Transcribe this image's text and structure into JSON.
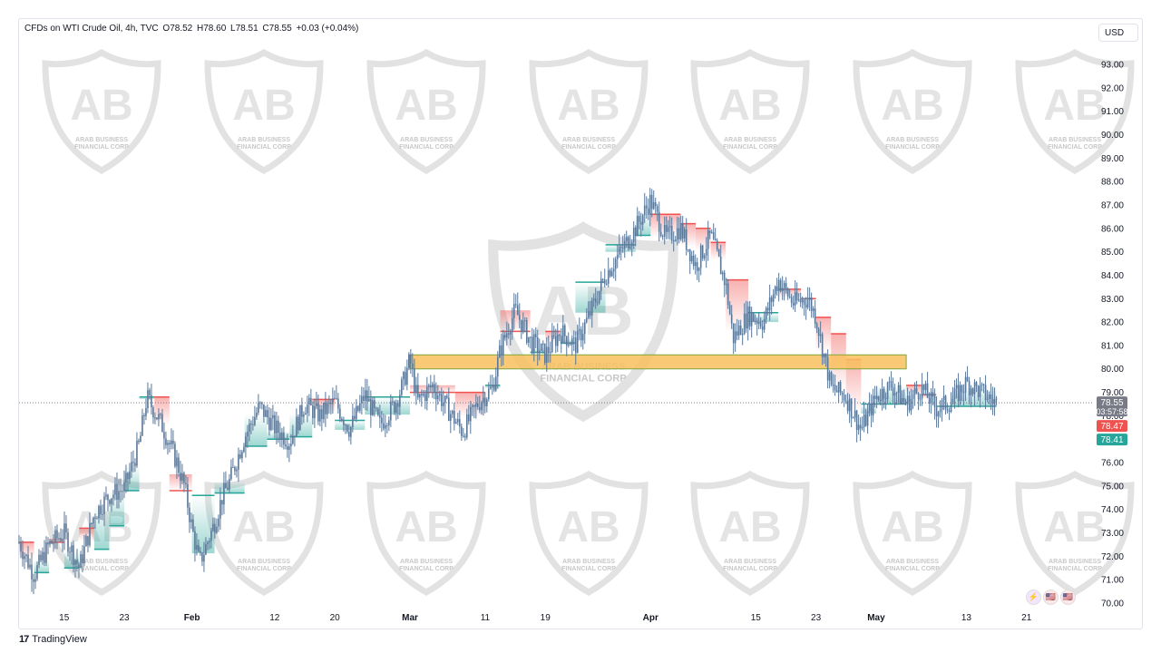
{
  "header": {
    "symbol": "CFDs on WTI Crude Oil, 4h, TVC",
    "open": "O78.52",
    "high": "H78.60",
    "low": "L78.51",
    "close": "C78.55",
    "change": "+0.03 (+0.04%)",
    "currency_button": "USD"
  },
  "footer": {
    "brand": "TradingView"
  },
  "badges": [
    "⚡",
    "🇺🇸",
    "🇺🇸"
  ],
  "watermark_text": [
    "ARAB BUSINESS",
    "FINANCIAL CORP"
  ],
  "colors": {
    "up": "#26a69a",
    "down": "#ef5350",
    "candle": "#5b7796",
    "zone_fill": "#f9bf5e",
    "zone_border": "#7ea63a",
    "last_price_tag": "#787b86"
  },
  "price_tags": {
    "last": "78.55",
    "countdown": "03:57:58",
    "red_level": "78.47",
    "green_level": "78.41"
  },
  "chart_data": {
    "type": "candlestick",
    "title": "CFDs on WTI Crude Oil, 4h, TVC",
    "ylim": [
      70,
      93
    ],
    "y_ticks": [
      "93.00",
      "92.00",
      "91.00",
      "90.00",
      "89.00",
      "88.00",
      "87.00",
      "86.00",
      "85.00",
      "84.00",
      "83.00",
      "82.00",
      "81.00",
      "80.00",
      "79.00",
      "78.00",
      "77.00",
      "76.00",
      "75.00",
      "74.00",
      "73.00",
      "72.00",
      "71.00",
      "70.00"
    ],
    "x_ticks": [
      {
        "label": "15",
        "bold": false
      },
      {
        "label": "23",
        "bold": false
      },
      {
        "label": "Feb",
        "bold": true
      },
      {
        "label": "12",
        "bold": false
      },
      {
        "label": "20",
        "bold": false
      },
      {
        "label": "Mar",
        "bold": true
      },
      {
        "label": "11",
        "bold": false
      },
      {
        "label": "19",
        "bold": false
      },
      {
        "label": "Apr",
        "bold": true
      },
      {
        "label": "15",
        "bold": false
      },
      {
        "label": "23",
        "bold": false
      },
      {
        "label": "May",
        "bold": true
      },
      {
        "label": "13",
        "bold": false
      },
      {
        "label": "21",
        "bold": false
      }
    ],
    "x_tick_days": [
      4,
      12,
      21,
      32,
      40,
      50,
      60,
      68,
      82,
      96,
      104,
      112,
      124,
      132
    ],
    "days_span": [
      -2,
      133
    ],
    "price_path": [
      [
        -2,
        72.6
      ],
      [
        0,
        71.2
      ],
      [
        2,
        72.5
      ],
      [
        4,
        73.0
      ],
      [
        6,
        71.5
      ],
      [
        8,
        73.8
      ],
      [
        10,
        74.6
      ],
      [
        12,
        74.9
      ],
      [
        14,
        76.8
      ],
      [
        15,
        78.8
      ],
      [
        17,
        77.6
      ],
      [
        19,
        76.0
      ],
      [
        20,
        75.0
      ],
      [
        21,
        73.2
      ],
      [
        22,
        71.7
      ],
      [
        24,
        73.4
      ],
      [
        25,
        74.5
      ],
      [
        26,
        75.2
      ],
      [
        28,
        77.1
      ],
      [
        30,
        78.4
      ],
      [
        32,
        77.5
      ],
      [
        34,
        76.9
      ],
      [
        36,
        78.5
      ],
      [
        38,
        78.0
      ],
      [
        40,
        78.6
      ],
      [
        42,
        77.4
      ],
      [
        44,
        78.9
      ],
      [
        46,
        77.6
      ],
      [
        48,
        78.5
      ],
      [
        49,
        79.3
      ],
      [
        50,
        80.4
      ],
      [
        51,
        78.6
      ],
      [
        53,
        79.3
      ],
      [
        55,
        78.3
      ],
      [
        57,
        77.3
      ],
      [
        59,
        78.5
      ],
      [
        61,
        79.2
      ],
      [
        62,
        80.8
      ],
      [
        63,
        81.7
      ],
      [
        64,
        82.5
      ],
      [
        66,
        81.2
      ],
      [
        68,
        80.6
      ],
      [
        70,
        81.6
      ],
      [
        72,
        81.0
      ],
      [
        74,
        82.4
      ],
      [
        76,
        84.0
      ],
      [
        78,
        85.0
      ],
      [
        80,
        86.0
      ],
      [
        82,
        87.2
      ],
      [
        84,
        85.6
      ],
      [
        86,
        86.0
      ],
      [
        88,
        84.4
      ],
      [
        90,
        85.7
      ],
      [
        92,
        83.6
      ],
      [
        93,
        81.3
      ],
      [
        95,
        82.3
      ],
      [
        97,
        82.0
      ],
      [
        99,
        83.8
      ],
      [
        101,
        82.8
      ],
      [
        103,
        83.0
      ],
      [
        104,
        82.2
      ],
      [
        106,
        79.2
      ],
      [
        108,
        78.8
      ],
      [
        110,
        77.4
      ],
      [
        112,
        78.8
      ],
      [
        114,
        79.3
      ],
      [
        116,
        78.5
      ],
      [
        118,
        79.2
      ],
      [
        120,
        78.3
      ],
      [
        122,
        78.6
      ],
      [
        124,
        79.4
      ],
      [
        126,
        79.0
      ],
      [
        128,
        78.55
      ]
    ],
    "supertrend": [
      {
        "from": -2,
        "to": 0,
        "value": 72.6,
        "side": "down"
      },
      {
        "from": 0,
        "to": 2,
        "value": 71.3,
        "side": "up"
      },
      {
        "from": 2,
        "to": 4,
        "value": 72.6,
        "side": "down"
      },
      {
        "from": 4,
        "to": 6,
        "value": 71.5,
        "side": "up"
      },
      {
        "from": 6,
        "to": 8,
        "value": 73.2,
        "side": "down"
      },
      {
        "from": 8,
        "to": 10,
        "value": 72.3,
        "side": "up"
      },
      {
        "from": 10,
        "to": 12,
        "value": 73.3,
        "side": "up"
      },
      {
        "from": 12,
        "to": 14,
        "value": 74.8,
        "side": "up"
      },
      {
        "from": 14,
        "to": 16,
        "value": 78.8,
        "side": "up"
      },
      {
        "from": 16,
        "to": 18,
        "value": 78.8,
        "side": "down"
      },
      {
        "from": 18,
        "to": 21,
        "value": 74.8,
        "side": "down"
      },
      {
        "from": 21,
        "to": 24,
        "value": 74.6,
        "side": "up"
      },
      {
        "from": 24,
        "to": 28,
        "value": 74.7,
        "side": "up"
      },
      {
        "from": 28,
        "to": 31,
        "value": 76.7,
        "side": "up"
      },
      {
        "from": 31,
        "to": 34,
        "value": 77.0,
        "side": "up"
      },
      {
        "from": 34,
        "to": 37,
        "value": 77.1,
        "side": "up"
      },
      {
        "from": 37,
        "to": 40,
        "value": 78.7,
        "side": "down"
      },
      {
        "from": 40,
        "to": 44,
        "value": 77.8,
        "side": "up"
      },
      {
        "from": 44,
        "to": 50,
        "value": 78.8,
        "side": "up"
      },
      {
        "from": 50,
        "to": 56,
        "value": 79.0,
        "side": "down"
      },
      {
        "from": 56,
        "to": 60,
        "value": 79.0,
        "side": "down"
      },
      {
        "from": 60,
        "to": 62,
        "value": 79.3,
        "side": "up"
      },
      {
        "from": 62,
        "to": 66,
        "value": 81.6,
        "side": "down"
      },
      {
        "from": 66,
        "to": 68,
        "value": 80.7,
        "side": "up"
      },
      {
        "from": 68,
        "to": 70,
        "value": 81.6,
        "side": "down"
      },
      {
        "from": 70,
        "to": 72,
        "value": 81.1,
        "side": "up"
      },
      {
        "from": 72,
        "to": 76,
        "value": 83.7,
        "side": "up"
      },
      {
        "from": 76,
        "to": 80,
        "value": 85.3,
        "side": "up"
      },
      {
        "from": 80,
        "to": 82,
        "value": 85.7,
        "side": "up"
      },
      {
        "from": 82,
        "to": 86,
        "value": 86.6,
        "side": "down"
      },
      {
        "from": 86,
        "to": 88,
        "value": 86.2,
        "side": "down"
      },
      {
        "from": 88,
        "to": 90,
        "value": 86.0,
        "side": "down"
      },
      {
        "from": 90,
        "to": 92,
        "value": 85.4,
        "side": "down"
      },
      {
        "from": 92,
        "to": 95,
        "value": 83.8,
        "side": "down"
      },
      {
        "from": 95,
        "to": 99,
        "value": 82.4,
        "side": "up"
      },
      {
        "from": 99,
        "to": 102,
        "value": 83.4,
        "side": "down"
      },
      {
        "from": 102,
        "to": 104,
        "value": 83.0,
        "side": "down"
      },
      {
        "from": 104,
        "to": 106,
        "value": 82.2,
        "side": "down"
      },
      {
        "from": 106,
        "to": 108,
        "value": 81.5,
        "side": "down"
      },
      {
        "from": 108,
        "to": 110,
        "value": 80.4,
        "side": "down"
      },
      {
        "from": 110,
        "to": 112,
        "value": 78.5,
        "side": "up"
      },
      {
        "from": 112,
        "to": 116,
        "value": 78.5,
        "side": "up"
      },
      {
        "from": 116,
        "to": 118,
        "value": 79.3,
        "side": "down"
      },
      {
        "from": 118,
        "to": 120,
        "value": 78.9,
        "side": "down"
      },
      {
        "from": 120,
        "to": 122,
        "value": 78.4,
        "side": "up"
      },
      {
        "from": 122,
        "to": 128,
        "value": 78.4,
        "side": "up"
      }
    ],
    "zone": {
      "x_from": 50,
      "x_to": 116,
      "y_low": 80.0,
      "y_high": 80.6
    },
    "last_price": 78.55
  }
}
